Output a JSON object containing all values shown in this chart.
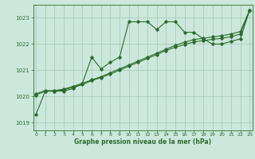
{
  "title": "Graphe pression niveau de la mer (hPa)",
  "background_color": "#cce8dc",
  "grid_color": "#a0c8b0",
  "line_color": "#2d6a2d",
  "xlim": [
    -0.3,
    23.3
  ],
  "ylim": [
    1018.7,
    1023.5
  ],
  "yticks": [
    1019,
    1020,
    1021,
    1022,
    1023
  ],
  "xticks": [
    0,
    1,
    2,
    3,
    4,
    5,
    6,
    7,
    8,
    9,
    10,
    11,
    12,
    13,
    14,
    15,
    16,
    17,
    18,
    19,
    20,
    21,
    22,
    23
  ],
  "series1": [
    1019.3,
    1020.2,
    1020.2,
    1020.2,
    1020.3,
    1020.5,
    1021.5,
    1021.05,
    1021.3,
    1021.5,
    1022.85,
    1022.85,
    1022.85,
    1022.55,
    1022.85,
    1022.85,
    1022.45,
    1022.45,
    1022.2,
    1022.0,
    1022.0,
    1022.1,
    1022.2,
    1023.3
  ],
  "series2": [
    1020.05,
    1020.2,
    1020.2,
    1020.25,
    1020.35,
    1020.45,
    1020.6,
    1020.72,
    1020.85,
    1021.0,
    1021.15,
    1021.3,
    1021.45,
    1021.6,
    1021.75,
    1021.88,
    1021.98,
    1022.08,
    1022.13,
    1022.18,
    1022.22,
    1022.28,
    1022.38,
    1023.3
  ],
  "series3": [
    1020.1,
    1020.22,
    1020.22,
    1020.28,
    1020.38,
    1020.5,
    1020.63,
    1020.75,
    1020.9,
    1021.05,
    1021.2,
    1021.35,
    1021.5,
    1021.65,
    1021.8,
    1021.95,
    1022.07,
    1022.17,
    1022.22,
    1022.27,
    1022.32,
    1022.38,
    1022.48,
    1023.3
  ]
}
